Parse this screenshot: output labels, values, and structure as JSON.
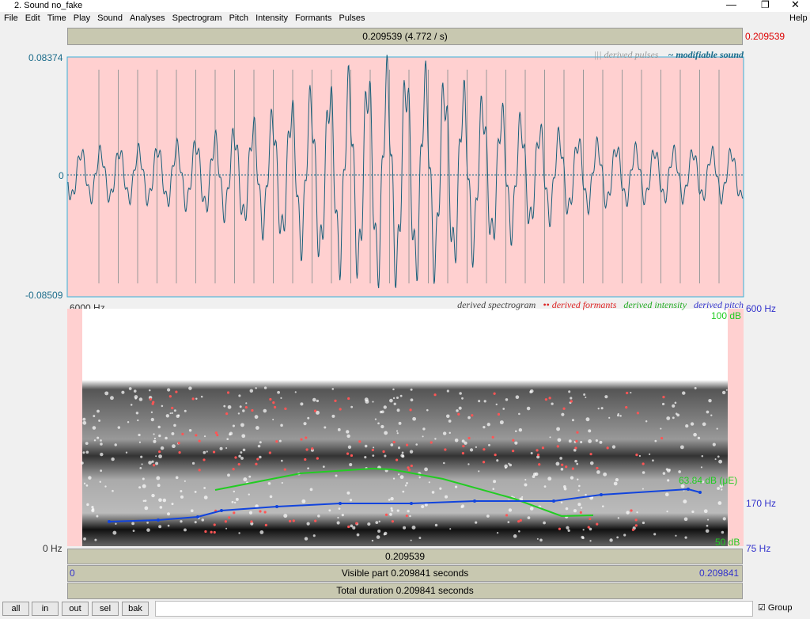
{
  "window": {
    "title": "2. Sound no_fake"
  },
  "menu": [
    "File",
    "Edit",
    "Time",
    "Play",
    "Sound",
    "Analyses",
    "Spectrogram",
    "Pitch",
    "Intensity",
    "Formants",
    "Pulses"
  ],
  "help": "Help",
  "cursor": {
    "label": "0.209539 (4.772 / s)",
    "right": "0.209539"
  },
  "waveform": {
    "ymax": "0.08374",
    "yzero": "0",
    "ymin": "-0.08509",
    "legend": [
      "||| derived pulses",
      "~ modifiable sound"
    ]
  },
  "spectrogram": {
    "fmax": "6000 Hz",
    "fmin": "0 Hz",
    "pmax": "600 Hz",
    "pmid": "170 Hz",
    "pmin": "75 Hz",
    "dbmax": "100 dB",
    "dbmin": "50 dB",
    "dbcur": "63.84 dB (μE)",
    "legend": [
      "derived spectrogram",
      "•• derived formants",
      "derived intensity",
      "derived pitch"
    ]
  },
  "bottom": {
    "cursor": "0.209539",
    "start": "0",
    "visible": "Visible part 0.209841 seconds",
    "end": "0.209841",
    "total": "Total duration 0.209841 seconds"
  },
  "buttons": [
    "all",
    "in",
    "out",
    "sel",
    "bak"
  ],
  "group": "Group"
}
